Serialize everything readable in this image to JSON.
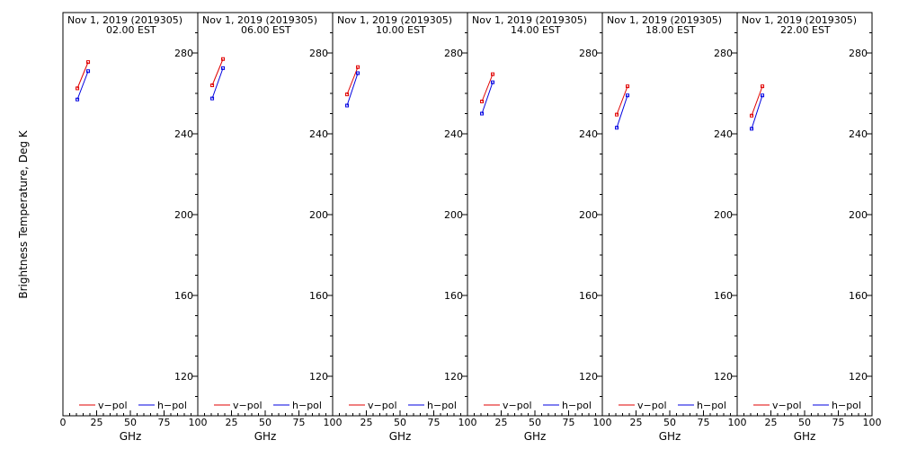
{
  "shared": {
    "ylabel": "Brightness Temperature, Deg K",
    "xlabel": "GHz",
    "xlim": [
      0,
      100
    ],
    "ylim": [
      100,
      295
    ],
    "x_ticks": [
      0,
      25,
      50,
      75,
      100
    ],
    "x_tick_labels": [
      "0",
      "25",
      "50",
      "75",
      "100"
    ],
    "y_ticks": [
      120,
      160,
      200,
      240,
      280
    ],
    "y_tick_labels": [
      "120",
      "160",
      "200",
      "240",
      "280"
    ],
    "legend": [
      "v−pol",
      "h−pol"
    ],
    "colors": {
      "v_pol": "#e00000",
      "h_pol": "#0000e0",
      "frame": "#000000"
    }
  },
  "chart_data": [
    {
      "type": "line",
      "title": "Nov  1, 2019 (2019305)",
      "subtitle": "02.00 EST",
      "x": [
        10.7,
        18.7
      ],
      "series": [
        {
          "name": "v−pol",
          "values": [
            262.5,
            275.5
          ]
        },
        {
          "name": "h−pol",
          "values": [
            257.0,
            271.0
          ]
        }
      ]
    },
    {
      "type": "line",
      "title": "Nov  1, 2019 (2019305)",
      "subtitle": "06.00 EST",
      "x": [
        10.7,
        18.7
      ],
      "series": [
        {
          "name": "v−pol",
          "values": [
            264.0,
            277.0
          ]
        },
        {
          "name": "h−pol",
          "values": [
            257.5,
            272.5
          ]
        }
      ]
    },
    {
      "type": "line",
      "title": "Nov  1, 2019 (2019305)",
      "subtitle": "10.00 EST",
      "x": [
        10.7,
        18.7
      ],
      "series": [
        {
          "name": "v−pol",
          "values": [
            259.5,
            273.0
          ]
        },
        {
          "name": "h−pol",
          "values": [
            254.0,
            270.0
          ]
        }
      ]
    },
    {
      "type": "line",
      "title": "Nov  1, 2019 (2019305)",
      "subtitle": "14.00 EST",
      "x": [
        10.7,
        18.7
      ],
      "series": [
        {
          "name": "v−pol",
          "values": [
            256.0,
            269.5
          ]
        },
        {
          "name": "h−pol",
          "values": [
            250.0,
            265.5
          ]
        }
      ]
    },
    {
      "type": "line",
      "title": "Nov  1, 2019 (2019305)",
      "subtitle": "18.00 EST",
      "x": [
        10.7,
        18.7
      ],
      "series": [
        {
          "name": "v−pol",
          "values": [
            249.5,
            263.5
          ]
        },
        {
          "name": "h−pol",
          "values": [
            243.0,
            259.0
          ]
        }
      ]
    },
    {
      "type": "line",
      "title": "Nov  1, 2019 (2019305)",
      "subtitle": "22.00 EST",
      "x": [
        10.7,
        18.7
      ],
      "series": [
        {
          "name": "v−pol",
          "values": [
            249.0,
            263.5
          ]
        },
        {
          "name": "h−pol",
          "values": [
            242.5,
            259.0
          ]
        }
      ]
    }
  ]
}
